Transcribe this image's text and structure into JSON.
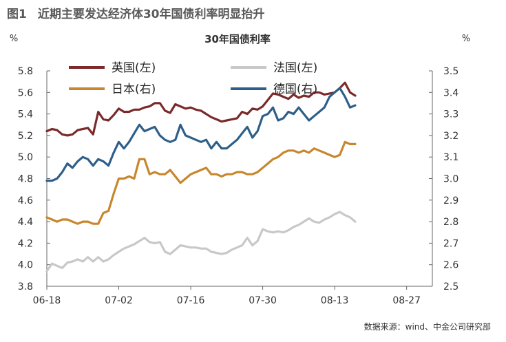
{
  "figure": {
    "label": "图1",
    "title": "近期主要发达经济体30年国债利率明显抬升",
    "source": "数据来源：wind、中金公司研究部"
  },
  "chart_data": {
    "type": "line",
    "title": "30年国债利率",
    "left_axis_unit": "%",
    "right_axis_unit": "%",
    "left_ylim": [
      3.8,
      5.8
    ],
    "right_ylim": [
      2.5,
      3.5
    ],
    "left_ticks": [
      "3.8",
      "4.0",
      "4.2",
      "4.4",
      "4.6",
      "4.8",
      "5.0",
      "5.2",
      "5.4",
      "5.6",
      "5.8"
    ],
    "right_ticks": [
      "2.5",
      "2.6",
      "2.7",
      "2.8",
      "2.9",
      "3.0",
      "3.1",
      "3.2",
      "3.3",
      "3.4",
      "3.5"
    ],
    "x_tick_labels": [
      "06-18",
      "07-02",
      "07-16",
      "07-30",
      "08-13",
      "08-27"
    ],
    "x_tick_positions": [
      0,
      14,
      28,
      42,
      56,
      70
    ],
    "x_range": [
      0,
      75
    ],
    "legend_position": "top",
    "grid": false,
    "series": [
      {
        "name": "英国(左)",
        "axis": "left",
        "color": "#7b2a2a",
        "x": [
          0,
          1,
          2,
          3,
          4,
          5,
          6,
          7,
          8,
          9,
          10,
          11,
          12,
          13,
          14,
          15,
          16,
          17,
          18,
          19,
          20,
          21,
          22,
          23,
          24,
          25,
          26,
          27,
          28,
          29,
          30,
          31,
          32,
          33,
          34,
          35,
          36,
          37,
          38,
          39,
          40,
          41,
          42,
          43,
          44,
          45,
          46,
          47,
          48,
          49,
          50,
          51,
          52,
          53,
          54,
          55,
          56,
          57,
          58,
          59,
          60,
          61,
          62,
          63,
          64,
          65,
          66,
          67,
          68,
          69,
          70,
          71,
          72,
          73,
          74
        ],
        "values": [
          5.24,
          5.26,
          5.25,
          5.21,
          5.2,
          5.21,
          5.25,
          5.26,
          5.27,
          5.21,
          5.42,
          5.35,
          5.34,
          5.39,
          5.45,
          5.42,
          5.42,
          5.44,
          5.44,
          5.46,
          5.47,
          5.5,
          5.5,
          5.43,
          5.41,
          5.49,
          5.47,
          5.45,
          5.46,
          5.44,
          5.43,
          5.4,
          5.37,
          5.35,
          5.33,
          5.34,
          5.35,
          5.36,
          5.42,
          5.4,
          5.45,
          5.44,
          5.47,
          5.53,
          5.59,
          5.58,
          5.56,
          5.54,
          5.58,
          5.55,
          5.57,
          5.56,
          5.6,
          5.6,
          5.58,
          5.59,
          5.6,
          5.64,
          5.69,
          5.6,
          5.57,
          null,
          null,
          null,
          null,
          null,
          null,
          null,
          null,
          null,
          null,
          null,
          null,
          null,
          null
        ]
      },
      {
        "name": "法国(左)",
        "axis": "left",
        "color": "#c8c8c8",
        "x": [
          0,
          1,
          2,
          3,
          4,
          5,
          6,
          7,
          8,
          9,
          10,
          11,
          12,
          13,
          14,
          15,
          16,
          17,
          18,
          19,
          20,
          21,
          22,
          23,
          24,
          25,
          26,
          27,
          28,
          29,
          30,
          31,
          32,
          33,
          34,
          35,
          36,
          37,
          38,
          39,
          40,
          41,
          42,
          43,
          44,
          45,
          46,
          47,
          48,
          49,
          50,
          51,
          52,
          53,
          54,
          55,
          56,
          57,
          58,
          59,
          60
        ],
        "values": [
          3.94,
          4.01,
          3.99,
          3.97,
          4.02,
          4.03,
          4.05,
          4.03,
          4.07,
          4.03,
          4.07,
          4.03,
          4.05,
          4.09,
          4.12,
          4.15,
          4.17,
          4.19,
          4.22,
          4.25,
          4.21,
          4.2,
          4.21,
          4.12,
          4.1,
          4.14,
          4.18,
          4.17,
          4.16,
          4.16,
          4.15,
          4.15,
          4.12,
          4.11,
          4.1,
          4.11,
          4.14,
          4.16,
          4.18,
          4.25,
          4.18,
          4.22,
          4.33,
          4.31,
          4.3,
          4.31,
          4.3,
          4.32,
          4.35,
          4.37,
          4.4,
          4.43,
          4.4,
          4.39,
          4.42,
          4.44,
          4.47,
          4.49,
          4.46,
          4.44,
          4.4
        ]
      },
      {
        "name": "日本(右)",
        "axis": "right",
        "color": "#c8862d",
        "x": [
          0,
          1,
          2,
          3,
          4,
          5,
          6,
          7,
          8,
          9,
          10,
          11,
          12,
          13,
          14,
          15,
          16,
          17,
          18,
          19,
          20,
          21,
          22,
          23,
          24,
          25,
          26,
          27,
          28,
          29,
          30,
          31,
          32,
          33,
          34,
          35,
          36,
          37,
          38,
          39,
          40,
          41,
          42,
          43,
          44,
          45,
          46,
          47,
          48,
          49,
          50,
          51,
          52,
          53,
          54,
          55,
          56,
          57,
          58,
          59,
          60
        ],
        "values": [
          2.82,
          2.81,
          2.8,
          2.81,
          2.81,
          2.8,
          2.79,
          2.8,
          2.8,
          2.79,
          2.79,
          2.84,
          2.85,
          2.93,
          3.0,
          3.0,
          3.01,
          3.0,
          3.09,
          3.09,
          3.02,
          3.03,
          3.02,
          3.02,
          3.04,
          3.01,
          2.98,
          3.0,
          3.02,
          3.03,
          3.04,
          3.05,
          3.02,
          3.02,
          3.01,
          3.02,
          3.02,
          3.03,
          3.03,
          3.02,
          3.02,
          3.03,
          3.05,
          3.07,
          3.09,
          3.1,
          3.12,
          3.13,
          3.13,
          3.12,
          3.13,
          3.12,
          3.14,
          3.13,
          3.12,
          3.11,
          3.1,
          3.11,
          3.17,
          3.16,
          3.16
        ]
      },
      {
        "name": "德国(右)",
        "axis": "right",
        "color": "#2d5f8a",
        "x": [
          0,
          1,
          2,
          3,
          4,
          5,
          6,
          7,
          8,
          9,
          10,
          11,
          12,
          13,
          14,
          15,
          16,
          17,
          18,
          19,
          20,
          21,
          22,
          23,
          24,
          25,
          26,
          27,
          28,
          29,
          30,
          31,
          32,
          33,
          34,
          35,
          36,
          37,
          38,
          39,
          40,
          41,
          42,
          43,
          44,
          45,
          46,
          47,
          48,
          49,
          50,
          51,
          52,
          53,
          54,
          55,
          56,
          57,
          58,
          59,
          60
        ],
        "values": [
          2.99,
          2.99,
          3.0,
          3.03,
          3.07,
          3.05,
          3.08,
          3.1,
          3.09,
          3.06,
          3.09,
          3.08,
          3.06,
          3.12,
          3.17,
          3.14,
          3.17,
          3.21,
          3.25,
          3.22,
          3.23,
          3.24,
          3.2,
          3.18,
          3.17,
          3.18,
          3.25,
          3.2,
          3.19,
          3.18,
          3.17,
          3.18,
          3.14,
          3.17,
          3.14,
          3.14,
          3.16,
          3.18,
          3.21,
          3.24,
          3.19,
          3.22,
          3.29,
          3.3,
          3.33,
          3.27,
          3.28,
          3.31,
          3.3,
          3.33,
          3.3,
          3.27,
          3.29,
          3.31,
          3.33,
          3.38,
          3.4,
          3.42,
          3.38,
          3.33,
          3.34
        ]
      }
    ]
  }
}
